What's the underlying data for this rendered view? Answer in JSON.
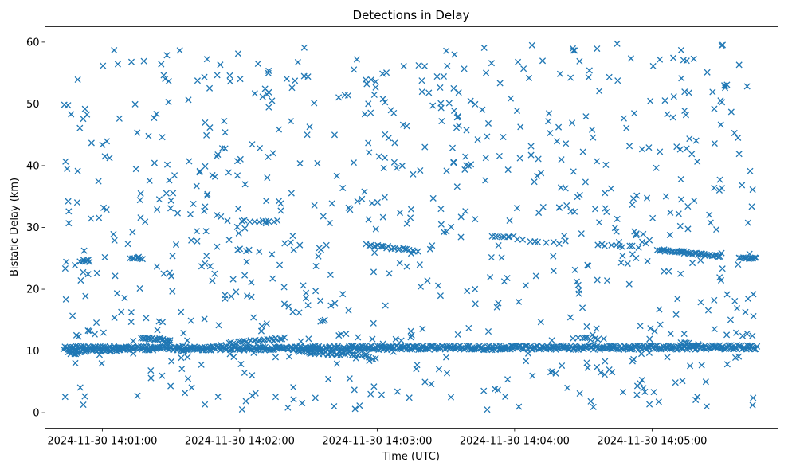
{
  "chart_data": {
    "type": "scatter",
    "title": "Detections in Delay",
    "xlabel": "Time (UTC)",
    "ylabel": "Bistatic Delay (km)",
    "x_is_time": true,
    "x_start": "2024-11-30 14:00:43",
    "x_end": "2024-11-30 14:05:46",
    "xlim": [
      "2024-11-30 14:00:35",
      "2024-11-30 14:05:55"
    ],
    "ylim": [
      -2.5,
      62.5
    ],
    "x_ticks": [
      "2024-11-30 14:01:00",
      "2024-11-30 14:02:00",
      "2024-11-30 14:03:00",
      "2024-11-30 14:04:00",
      "2024-11-30 14:05:00"
    ],
    "y_ticks": [
      0,
      10,
      20,
      30,
      40,
      50,
      60
    ],
    "marker": "x",
    "grid": false,
    "color": "#1f77b4",
    "series": [
      {
        "bands": [
          {
            "start": "2024-11-30 14:00:43",
            "end": "2024-11-30 14:05:46",
            "y_start": 10.4,
            "y_end": 10.6,
            "points": 650,
            "jitter": 0.35
          },
          {
            "start": "2024-11-30 14:00:45",
            "end": "2024-11-30 14:01:10",
            "y_start": 9.7,
            "y_end": 10.5,
            "points": 30,
            "jitter": 0.4
          },
          {
            "start": "2024-11-30 14:01:17",
            "end": "2024-11-30 14:01:30",
            "y_start": 12.2,
            "y_end": 11.7,
            "points": 22,
            "jitter": 0.2
          },
          {
            "start": "2024-11-30 14:01:55",
            "end": "2024-11-30 14:02:20",
            "y_start": 11.2,
            "y_end": 12.0,
            "points": 26,
            "jitter": 0.25
          },
          {
            "start": "2024-11-30 14:02:25",
            "end": "2024-11-30 14:02:45",
            "y_start": 10.0,
            "y_end": 9.5,
            "points": 25,
            "jitter": 0.3
          },
          {
            "start": "2024-11-30 14:02:45",
            "end": "2024-11-30 14:03:00",
            "y_start": 9.8,
            "y_end": 8.8,
            "points": 12,
            "jitter": 0.3
          },
          {
            "start": "2024-11-30 14:04:25",
            "end": "2024-11-30 14:04:40",
            "y_start": 12.2,
            "y_end": 11.8,
            "points": 8,
            "jitter": 0.2
          },
          {
            "start": "2024-11-30 14:05:14",
            "end": "2024-11-30 14:05:22",
            "y_start": 11.2,
            "y_end": 10.8,
            "points": 8,
            "jitter": 0.2
          },
          {
            "start": "2024-11-30 14:05:32",
            "end": "2024-11-30 14:05:46",
            "y_start": 12.7,
            "y_end": 12.6,
            "points": 5,
            "jitter": 0.3
          },
          {
            "start": "2024-11-30 14:00:50",
            "end": "2024-11-30 14:00:55",
            "y_start": 24.6,
            "y_end": 24.6,
            "points": 6,
            "jitter": 0.2
          },
          {
            "start": "2024-11-30 14:01:12",
            "end": "2024-11-30 14:01:18",
            "y_start": 25.1,
            "y_end": 25.0,
            "points": 7,
            "jitter": 0.15
          },
          {
            "start": "2024-11-30 14:02:00",
            "end": "2024-11-30 14:02:18",
            "y_start": 31.1,
            "y_end": 30.9,
            "points": 10,
            "jitter": 0.2
          },
          {
            "start": "2024-11-30 14:01:58",
            "end": "2024-11-30 14:02:05",
            "y_start": 26.4,
            "y_end": 26.3,
            "points": 4,
            "jitter": 0.2
          },
          {
            "start": "2024-11-30 14:02:55",
            "end": "2024-11-30 14:03:18",
            "y_start": 27.2,
            "y_end": 26.2,
            "points": 22,
            "jitter": 0.2
          },
          {
            "start": "2024-11-30 14:03:50",
            "end": "2024-11-30 14:04:00",
            "y_start": 28.6,
            "y_end": 28.5,
            "points": 8,
            "jitter": 0.15
          },
          {
            "start": "2024-11-30 14:04:00",
            "end": "2024-11-30 14:04:20",
            "y_start": 28.0,
            "y_end": 27.5,
            "points": 8,
            "jitter": 0.15
          },
          {
            "start": "2024-11-30 14:04:35",
            "end": "2024-11-30 14:04:55",
            "y_start": 27.2,
            "y_end": 26.8,
            "points": 10,
            "jitter": 0.15
          },
          {
            "start": "2024-11-30 14:05:02",
            "end": "2024-11-30 14:05:30",
            "y_start": 26.4,
            "y_end": 25.3,
            "points": 40,
            "jitter": 0.15
          },
          {
            "start": "2024-11-30 14:05:38",
            "end": "2024-11-30 14:05:46",
            "y_start": 25.1,
            "y_end": 25.0,
            "points": 12,
            "jitter": 0.12
          }
        ],
        "scatter": {
          "start": "2024-11-30 14:00:43",
          "end": "2024-11-30 14:05:46",
          "y_min": 0.5,
          "y_max": 59.8,
          "points": 780,
          "seed": 20241130
        }
      }
    ]
  }
}
